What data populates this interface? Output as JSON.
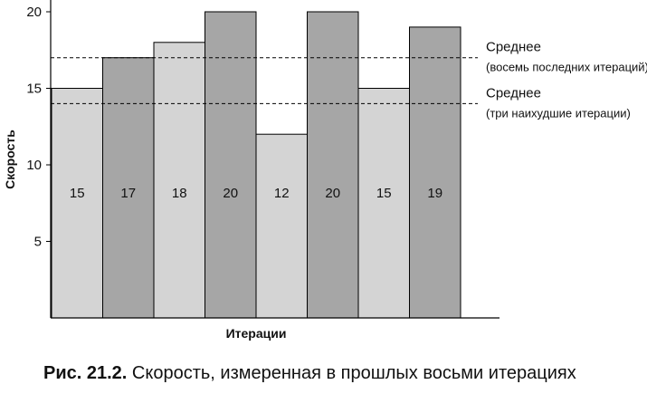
{
  "chart_data": {
    "type": "bar",
    "categories": [
      "",
      "",
      "",
      "",
      "",
      "",
      "",
      ""
    ],
    "values": [
      15,
      17,
      18,
      20,
      12,
      20,
      15,
      19
    ],
    "data_labels": [
      "15",
      "17",
      "18",
      "20",
      "12",
      "20",
      "15",
      "19"
    ],
    "bar_colors": [
      "#d4d4d4",
      "#a6a6a6",
      "#d4d4d4",
      "#a6a6a6",
      "#d4d4d4",
      "#a6a6a6",
      "#d4d4d4",
      "#a6a6a6"
    ],
    "xlabel": "Итерации",
    "ylabel": "Скорость",
    "ylim": [
      0,
      21
    ],
    "yticks": [
      {
        "value": 5,
        "label": "5"
      },
      {
        "value": 10,
        "label": "10"
      },
      {
        "value": 15,
        "label": "15"
      },
      {
        "value": 20,
        "label": "20"
      }
    ],
    "reference_lines": [
      {
        "value": 17,
        "title": "Среднее",
        "subtitle": "(восемь последних итераций)"
      },
      {
        "value": 14,
        "title": "Среднее",
        "subtitle": "(три наихудшие итерации)"
      }
    ],
    "grid": false
  },
  "caption": {
    "number": "Рис. 21.2.",
    "text": "Скорость, измеренная в прошлых восьми итерациях"
  }
}
